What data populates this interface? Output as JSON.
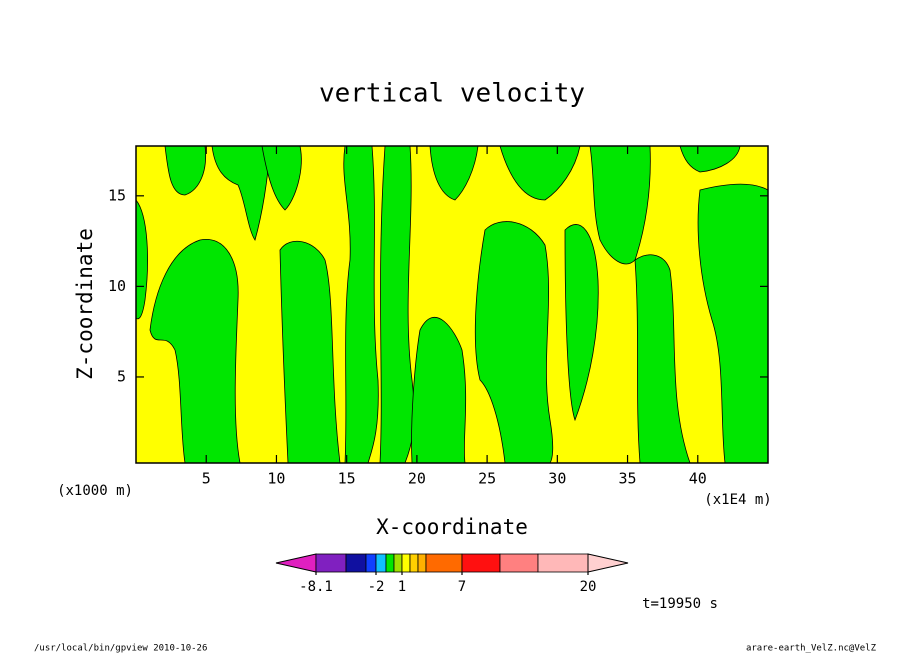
{
  "chart_data": {
    "type": "contour",
    "title": "vertical velocity",
    "x_label": "X-coordinate",
    "y_label": "Z-coordinate",
    "x_unit_left": "(x1000 m)",
    "x_unit_right": "(x1E4 m)",
    "time_label": "t=19950 s",
    "footer_left": "/usr/local/bin/gpview  2010-10-26",
    "footer_right": "arare-earth_VelZ.nc@VelZ",
    "xlim": [
      0,
      45
    ],
    "ylim": [
      0.25,
      17.75
    ],
    "xticks": [
      5,
      10,
      15,
      20,
      25,
      30,
      35,
      40
    ],
    "yticks": [
      5,
      10,
      15
    ],
    "field_colors": [
      "#ffff00",
      "#00e600"
    ],
    "colorbar_colors": [
      "#e020c0",
      "#8020c0",
      "#1010a0",
      "#1040ff",
      "#10c0ff",
      "#00e600",
      "#a0e000",
      "#ffff00",
      "#ffd000",
      "#ffb000",
      "#ff6a00",
      "#ff1010",
      "#ff8080",
      "#ffb8b8",
      "#ffd0d0"
    ],
    "colorbar_ticks": [
      -8.1,
      -2,
      1,
      7,
      20
    ]
  }
}
